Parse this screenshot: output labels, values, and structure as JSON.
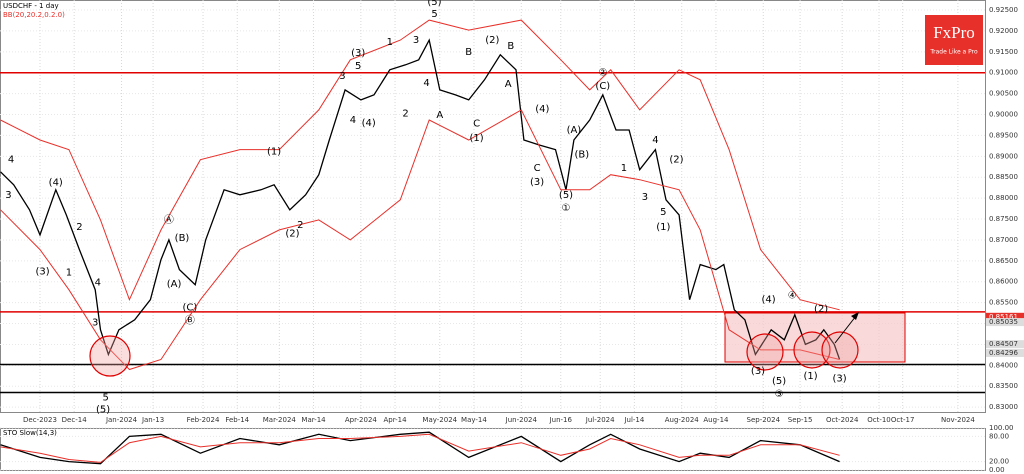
{
  "chart_data": [
    {
      "type": "line",
      "title": "USDCHF - 1 day",
      "subtitle": "BB(20,20.2,0.2.0)",
      "brand": "FxPro",
      "slogan": "Trade Like a Pro",
      "xlim": [
        -15.2,
        359.3
      ],
      "ylim": [
        0.8286,
        0.9274
      ],
      "xticks": [
        {
          "value": 0,
          "label": "Dec-2023"
        },
        {
          "value": 13,
          "label": "Dec-14"
        },
        {
          "value": 31,
          "label": "Jan-2024"
        },
        {
          "value": 43,
          "label": "Jan-13"
        },
        {
          "value": 62,
          "label": "Feb-2024"
        },
        {
          "value": 75,
          "label": "Feb-14"
        },
        {
          "value": 91,
          "label": "Mar-2024"
        },
        {
          "value": 104,
          "label": "Mar-14"
        },
        {
          "value": 122,
          "label": "Apr-2024"
        },
        {
          "value": 135,
          "label": "Apr-14"
        },
        {
          "value": 152,
          "label": "May-2024"
        },
        {
          "value": 165,
          "label": "May-14"
        },
        {
          "value": 183,
          "label": "Jun-2024"
        },
        {
          "value": 198,
          "label": "Jun-16"
        },
        {
          "value": 213,
          "label": "Jul-2024"
        },
        {
          "value": 226,
          "label": "Jul-14"
        },
        {
          "value": 244,
          "label": "Aug-2024"
        },
        {
          "value": 257,
          "label": "Aug-14"
        },
        {
          "value": 275,
          "label": "Sep-2024"
        },
        {
          "value": 289,
          "label": "Sep-15"
        },
        {
          "value": 305,
          "label": "Oct-2024"
        },
        {
          "value": 319,
          "label": "Oct-10"
        },
        {
          "value": 328,
          "label": "Oct-17"
        },
        {
          "value": 349,
          "label": "Nov-2024"
        }
      ],
      "yticks": [
        {
          "value": 0.83,
          "label": "0.83000"
        },
        {
          "value": 0.835,
          "label": "0.83500"
        },
        {
          "value": 0.84,
          "label": "0.84000"
        },
        {
          "value": 0.845,
          "label": "0.84500"
        },
        {
          "value": 0.85,
          "label": "0.85000"
        },
        {
          "value": 0.855,
          "label": "0.85500"
        },
        {
          "value": 0.86,
          "label": "0.86000"
        },
        {
          "value": 0.865,
          "label": "0.86500"
        },
        {
          "value": 0.87,
          "label": "0.87000"
        },
        {
          "value": 0.875,
          "label": "0.87500"
        },
        {
          "value": 0.88,
          "label": "0.88000"
        },
        {
          "value": 0.885,
          "label": "0.88500"
        },
        {
          "value": 0.89,
          "label": "0.89000"
        },
        {
          "value": 0.895,
          "label": "0.89500"
        },
        {
          "value": 0.9,
          "label": "0.90000"
        },
        {
          "value": 0.905,
          "label": "0.90500"
        },
        {
          "value": 0.91,
          "label": "0.91000"
        },
        {
          "value": 0.915,
          "label": "0.91500"
        },
        {
          "value": 0.92,
          "label": "0.92000"
        },
        {
          "value": 0.925,
          "label": "0.92500"
        }
      ],
      "series": [
        {
          "color": "#000000",
          "x": [
            -15,
            -10,
            -4,
            0,
            6,
            10,
            15,
            21,
            23,
            26,
            30,
            36,
            42,
            46,
            49,
            53,
            59,
            63,
            70,
            76,
            84,
            89,
            95,
            101,
            106,
            110,
            116,
            122,
            127,
            133,
            139,
            144,
            148,
            152,
            158,
            163,
            169,
            175,
            181,
            184,
            190,
            196,
            200,
            203,
            209,
            214,
            219,
            224,
            228,
            234,
            238,
            243,
            247,
            251,
            257,
            260,
            264,
            268,
            272,
            278,
            283,
            287,
            291,
            295,
            298,
            302,
            304
          ],
          "values": [
            0.8863,
            0.8832,
            0.8772,
            0.8712,
            0.882,
            0.876,
            0.8677,
            0.8581,
            0.8485,
            0.8426,
            0.8485,
            0.8509,
            0.8557,
            0.8653,
            0.87,
            0.8629,
            0.8593,
            0.87,
            0.882,
            0.8808,
            0.882,
            0.8832,
            0.8772,
            0.8808,
            0.8856,
            0.8939,
            0.9059,
            0.9035,
            0.9047,
            0.9107,
            0.9119,
            0.9131,
            0.9178,
            0.9059,
            0.9047,
            0.9035,
            0.9083,
            0.9143,
            0.9107,
            0.8939,
            0.8927,
            0.8916,
            0.882,
            0.8939,
            0.8987,
            0.9047,
            0.8963,
            0.8963,
            0.8868,
            0.8916,
            0.8796,
            0.876,
            0.8557,
            0.8641,
            0.8629,
            0.8641,
            0.8533,
            0.8509,
            0.8426,
            0.8485,
            0.8461,
            0.8521,
            0.845,
            0.8461,
            0.8485,
            0.845,
            0.8414
          ]
        },
        {
          "color": "#e8302a",
          "x": [
            -15,
            0,
            11,
            23,
            34,
            46,
            61,
            76,
            91,
            106,
            118,
            137,
            148,
            163,
            183,
            198,
            209,
            217,
            228,
            243,
            251,
            262,
            274,
            289,
            304
          ],
          "values": [
            0.8987,
            0.8939,
            0.8916,
            0.8748,
            0.8557,
            0.8724,
            0.8892,
            0.8916,
            0.8916,
            0.9011,
            0.9131,
            0.9178,
            0.9226,
            0.9202,
            0.9226,
            0.9131,
            0.9059,
            0.9107,
            0.9011,
            0.9107,
            0.9083,
            0.8916,
            0.8677,
            0.8557,
            0.8533
          ]
        },
        {
          "color": "#e8302a",
          "x": [
            -15,
            0,
            11,
            23,
            34,
            46,
            61,
            76,
            91,
            106,
            118,
            137,
            148,
            163,
            183,
            198,
            209,
            217,
            228,
            243,
            251,
            262,
            274,
            289,
            304
          ],
          "values": [
            0.8772,
            0.8677,
            0.8581,
            0.8461,
            0.839,
            0.8414,
            0.8557,
            0.8677,
            0.8724,
            0.8748,
            0.87,
            0.8796,
            0.8987,
            0.8939,
            0.9011,
            0.882,
            0.882,
            0.8856,
            0.8844,
            0.882,
            0.8724,
            0.8485,
            0.8437,
            0.8437,
            0.8414
          ]
        }
      ],
      "hlines": [
        {
          "value": 0.91,
          "color": "#e00000"
        },
        {
          "value": 0.8528,
          "color": "#e00000"
        },
        {
          "value": 0.8402,
          "color": "#000000"
        },
        {
          "value": 0.8335,
          "color": "#000000"
        }
      ],
      "price_labels": [
        {
          "value": 0.85161,
          "label": "0.85161"
        },
        {
          "value": 0.85035,
          "label": "0.85035"
        },
        {
          "value": 0.84507,
          "label": "0.84507"
        },
        {
          "value": 0.84296,
          "label": "0.84296"
        }
      ],
      "annotations": [
        {
          "text": "4",
          "x": -11,
          "y": 0.8892
        },
        {
          "text": "3",
          "x": -12,
          "y": 0.8808
        },
        {
          "text": "(4)",
          "x": 6,
          "y": 0.8837
        },
        {
          "text": "(3)",
          "x": 1,
          "y": 0.8624
        },
        {
          "text": "2",
          "x": 15,
          "y": 0.8731
        },
        {
          "text": "1",
          "x": 11,
          "y": 0.8622
        },
        {
          "text": "4",
          "x": 22,
          "y": 0.8598
        },
        {
          "text": "3",
          "x": 21,
          "y": 0.8502
        },
        {
          "text": "5",
          "x": 25,
          "y": 0.8323
        },
        {
          "text": "(5)",
          "x": 24,
          "y": 0.8294
        },
        {
          "text": "Ⓐ",
          "x": 49,
          "y": 0.8748
        },
        {
          "text": "(B)",
          "x": 54,
          "y": 0.8705
        },
        {
          "text": "(A)",
          "x": 51,
          "y": 0.8595
        },
        {
          "text": "(C)",
          "x": 57,
          "y": 0.8538
        },
        {
          "text": "Ⓑ",
          "x": 57,
          "y": 0.8507
        },
        {
          "text": "(1)",
          "x": 89,
          "y": 0.8911
        },
        {
          "text": "2",
          "x": 99,
          "y": 0.8736
        },
        {
          "text": "(2)",
          "x": 96,
          "y": 0.8715
        },
        {
          "text": "(3)",
          "x": 121,
          "y": 0.9147
        },
        {
          "text": "3",
          "x": 115,
          "y": 0.9092
        },
        {
          "text": "5",
          "x": 121,
          "y": 0.9116
        },
        {
          "text": "4",
          "x": 119,
          "y": 0.8987
        },
        {
          "text": "(4)",
          "x": 125,
          "y": 0.898
        },
        {
          "text": "1",
          "x": 133,
          "y": 0.9174
        },
        {
          "text": "2",
          "x": 139,
          "y": 0.9002
        },
        {
          "text": "4",
          "x": 147,
          "y": 0.9076
        },
        {
          "text": "3",
          "x": 143,
          "y": 0.9178
        },
        {
          "text": "5",
          "x": 150,
          "y": 0.9241
        },
        {
          "text": "(5)",
          "x": 150,
          "y": 0.9269
        },
        {
          "text": "A",
          "x": 152,
          "y": 0.8999
        },
        {
          "text": "B",
          "x": 163,
          "y": 0.915
        },
        {
          "text": "C",
          "x": 166,
          "y": 0.8978
        },
        {
          "text": "(1)",
          "x": 166,
          "y": 0.8944
        },
        {
          "text": "(2)",
          "x": 172,
          "y": 0.9178
        },
        {
          "text": "B",
          "x": 179,
          "y": 0.9164
        },
        {
          "text": "A",
          "x": 178,
          "y": 0.9073
        },
        {
          "text": "(4)",
          "x": 191,
          "y": 0.9013
        },
        {
          "text": "C",
          "x": 189,
          "y": 0.8872
        },
        {
          "text": "(3)",
          "x": 189,
          "y": 0.8839
        },
        {
          "text": "(5)",
          "x": 200,
          "y": 0.8808
        },
        {
          "text": "①",
          "x": 200,
          "y": 0.8777
        },
        {
          "text": "(A)",
          "x": 203,
          "y": 0.8963
        },
        {
          "text": "(B)",
          "x": 206,
          "y": 0.8904
        },
        {
          "text": "(C)",
          "x": 214,
          "y": 0.9068
        },
        {
          "text": "②",
          "x": 214,
          "y": 0.91
        },
        {
          "text": "1",
          "x": 222,
          "y": 0.8872
        },
        {
          "text": "4",
          "x": 234,
          "y": 0.8939
        },
        {
          "text": "(2)",
          "x": 242,
          "y": 0.8892
        },
        {
          "text": "3",
          "x": 230,
          "y": 0.8803
        },
        {
          "text": "5",
          "x": 237,
          "y": 0.8767
        },
        {
          "text": "(1)",
          "x": 237,
          "y": 0.8731
        },
        {
          "text": "(4)",
          "x": 277,
          "y": 0.8557
        },
        {
          "text": "④",
          "x": 286,
          "y": 0.8567
        },
        {
          "text": "(2)",
          "x": 297,
          "y": 0.8535
        },
        {
          "text": "(3)",
          "x": 273,
          "y": 0.8387
        },
        {
          "text": "(5)",
          "x": 281,
          "y": 0.8363
        },
        {
          "text": "③",
          "x": 281,
          "y": 0.8332
        },
        {
          "text": "(1)",
          "x": 293,
          "y": 0.8375
        },
        {
          "text": "(3)",
          "x": 304,
          "y": 0.8368
        }
      ]
    },
    {
      "type": "line",
      "title": "STO Slow(14,3)",
      "xlim": [
        -15.2,
        359.3
      ],
      "ylim": [
        0,
        100
      ],
      "yticks": [
        {
          "value": 100,
          "label": "100.00"
        },
        {
          "value": 80,
          "label": "80.00"
        },
        {
          "value": 20,
          "label": "20.00"
        },
        {
          "value": 0,
          "label": "0.00"
        }
      ],
      "x": [
        -15,
        0,
        11,
        23,
        34,
        46,
        61,
        76,
        91,
        106,
        118,
        137,
        148,
        163,
        183,
        198,
        209,
        217,
        228,
        243,
        251,
        262,
        274,
        289,
        304
      ],
      "series": [
        {
          "color": "#000000",
          "values": [
            60,
            30,
            20,
            15,
            80,
            85,
            40,
            75,
            60,
            85,
            70,
            85,
            90,
            30,
            80,
            20,
            60,
            85,
            50,
            20,
            40,
            30,
            70,
            60,
            20
          ]
        },
        {
          "color": "#e8302a",
          "values": [
            55,
            40,
            25,
            18,
            65,
            80,
            55,
            65,
            65,
            75,
            75,
            80,
            85,
            45,
            65,
            35,
            50,
            75,
            60,
            30,
            35,
            35,
            60,
            60,
            35
          ]
        }
      ]
    }
  ]
}
